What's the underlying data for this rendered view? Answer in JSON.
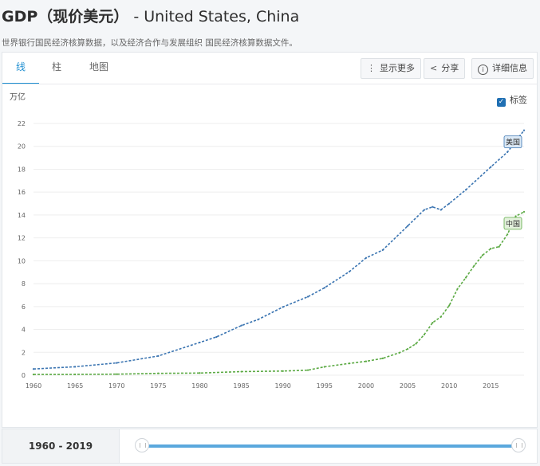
{
  "header": {
    "title_cn": "GDP（现价美元）",
    "title_rest": " - United States, China",
    "subtitle": "世界银行国民经济核算数据，以及经济合作与发展组织 国民经济核算数据文件。"
  },
  "tabs": [
    {
      "label": "线",
      "active": true
    },
    {
      "label": "柱",
      "active": false
    },
    {
      "label": "地图",
      "active": false
    }
  ],
  "toolbar": {
    "more_label": "显示更多",
    "share_label": "分享",
    "details_label": "详细信息",
    "more_icon": "vertical-ellipsis-icon",
    "share_icon": "share-icon",
    "details_icon": "info-icon"
  },
  "labels_toggle": {
    "label": "标签",
    "checked": true
  },
  "chart_data": {
    "type": "line",
    "ylabel": "万亿",
    "ylim": [
      0,
      22
    ],
    "yticks": [
      0,
      2,
      4,
      6,
      8,
      10,
      12,
      14,
      16,
      18,
      20,
      22
    ],
    "xlim": [
      1960,
      2019
    ],
    "xticks": [
      1960,
      1965,
      1970,
      1975,
      1980,
      1985,
      1990,
      1995,
      2000,
      2005,
      2010,
      2015
    ],
    "grid": true,
    "series": [
      {
        "name": "美国",
        "color": "#3a74b1",
        "x": [
          1960,
          1965,
          1970,
          1975,
          1980,
          1982,
          1985,
          1987,
          1990,
          1993,
          1995,
          1998,
          2000,
          2002,
          2005,
          2007,
          2008,
          2009,
          2010,
          2012,
          2015,
          2017,
          2019
        ],
        "values": [
          0.54,
          0.74,
          1.07,
          1.68,
          2.86,
          3.34,
          4.34,
          4.86,
          5.96,
          6.86,
          7.64,
          9.06,
          10.25,
          10.94,
          13.04,
          14.45,
          14.71,
          14.45,
          15.0,
          16.2,
          18.2,
          19.5,
          21.4
        ]
      },
      {
        "name": "中国",
        "color": "#5caa44",
        "x": [
          1960,
          1965,
          1970,
          1975,
          1980,
          1985,
          1990,
          1993,
          1995,
          1998,
          2000,
          2002,
          2004,
          2005,
          2006,
          2007,
          2008,
          2009,
          2010,
          2011,
          2012,
          2013,
          2014,
          2015,
          2016,
          2017,
          2018,
          2019
        ],
        "values": [
          0.06,
          0.07,
          0.09,
          0.16,
          0.19,
          0.31,
          0.36,
          0.44,
          0.73,
          1.03,
          1.21,
          1.47,
          1.96,
          2.29,
          2.75,
          3.55,
          4.59,
          5.1,
          6.09,
          7.55,
          8.53,
          9.57,
          10.48,
          11.06,
          11.23,
          12.31,
          13.89,
          14.28
        ]
      }
    ]
  },
  "range": {
    "label": "1960 - 2019",
    "start": 1960,
    "end": 2019
  }
}
